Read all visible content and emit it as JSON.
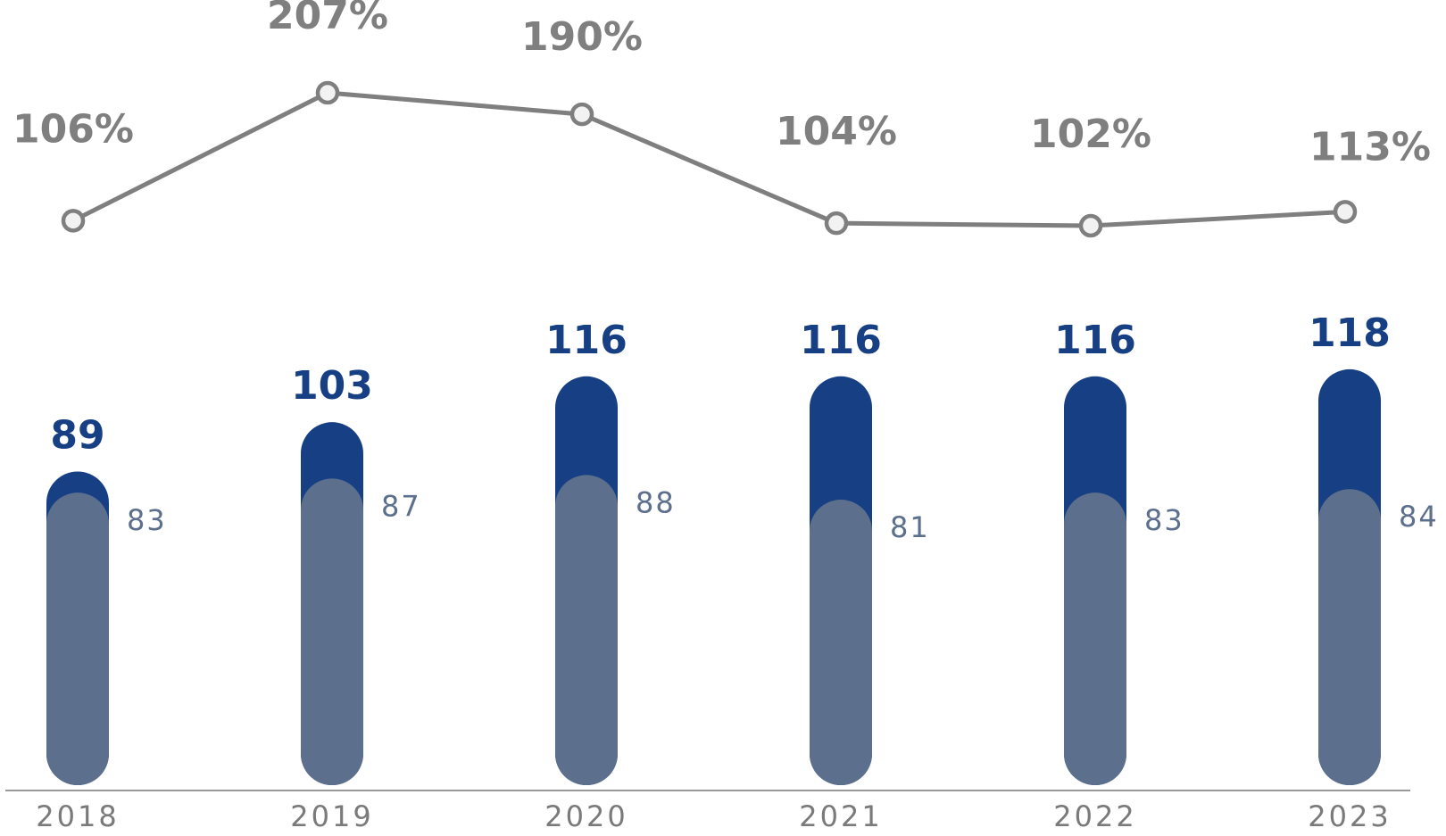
{
  "chart_data": {
    "type": "bar",
    "categories": [
      "2018",
      "2019",
      "2020",
      "2021",
      "2022",
      "2023"
    ],
    "series": [
      {
        "values": [
          89,
          103,
          116,
          116,
          116,
          118
        ]
      },
      {
        "values": [
          83,
          87,
          88,
          81,
          83,
          84
        ]
      }
    ],
    "line_series": {
      "values": [
        106,
        207,
        190,
        104,
        102,
        113
      ],
      "labels": [
        "106%",
        "207%",
        "190%",
        "104%",
        "102%",
        "113%"
      ]
    },
    "xlabel": "",
    "ylabel": "",
    "grid": false,
    "colors": {
      "outer_bar": "#173f84",
      "inner_bar": "#5c6f8c",
      "line": "#7f7f7f",
      "marker_fill": "#f2f2f2",
      "axis": "#9a9a9a"
    }
  }
}
